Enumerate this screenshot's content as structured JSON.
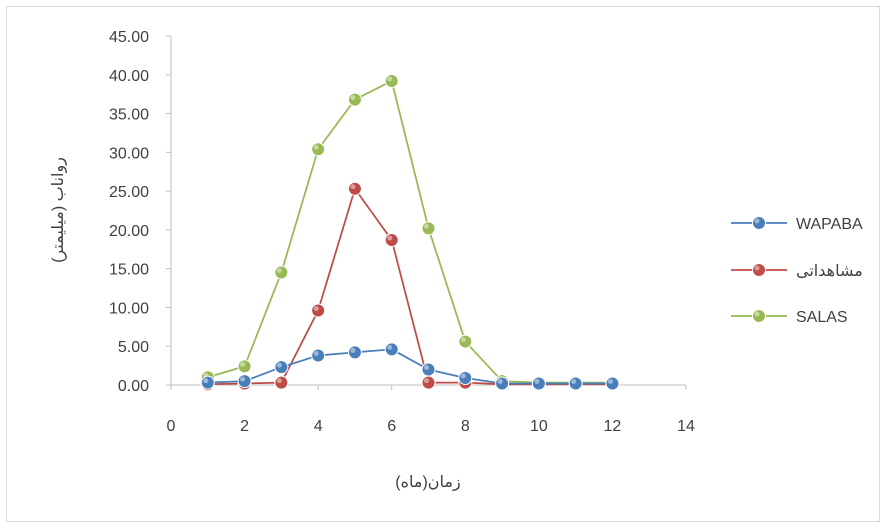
{
  "chart_data": {
    "type": "line",
    "title": "",
    "xlabel": "زمان(ماه)",
    "ylabel": "رواناب (میلیمتر)",
    "xlim": [
      0,
      14
    ],
    "ylim": [
      0,
      45
    ],
    "x_ticks": [
      "0",
      "2",
      "4",
      "6",
      "8",
      "10",
      "12",
      "14"
    ],
    "y_ticks": [
      "0.00",
      "5.00",
      "10.00",
      "15.00",
      "20.00",
      "25.00",
      "30.00",
      "35.00",
      "40.00",
      "45.00"
    ],
    "grid": false,
    "legend_position": "right",
    "series": [
      {
        "name": "WAPABA",
        "color": "#4a7ebb",
        "x": [
          1,
          2,
          3,
          4,
          5,
          6,
          7,
          8,
          9,
          10,
          11,
          12
        ],
        "y": [
          0.3,
          0.5,
          2.3,
          3.8,
          4.2,
          4.6,
          2.0,
          0.9,
          0.2,
          0.2,
          0.2,
          0.2
        ]
      },
      {
        "name": "مشاهداتی",
        "color": "#be4b48",
        "x": [
          1,
          2,
          3,
          4,
          5,
          6,
          7,
          8,
          9,
          10,
          11,
          12
        ],
        "y": [
          0.1,
          0.2,
          0.3,
          9.6,
          25.3,
          18.7,
          0.3,
          0.3,
          0.1,
          0.1,
          0.1,
          0.1
        ]
      },
      {
        "name": "SALAS",
        "color": "#98b954",
        "x": [
          1,
          2,
          3,
          4,
          5,
          6,
          7,
          8,
          9,
          10,
          11,
          12
        ],
        "y": [
          1.0,
          2.4,
          14.5,
          30.4,
          36.8,
          39.2,
          20.2,
          5.6,
          0.5,
          0.3,
          0.3,
          0.3
        ]
      }
    ]
  }
}
